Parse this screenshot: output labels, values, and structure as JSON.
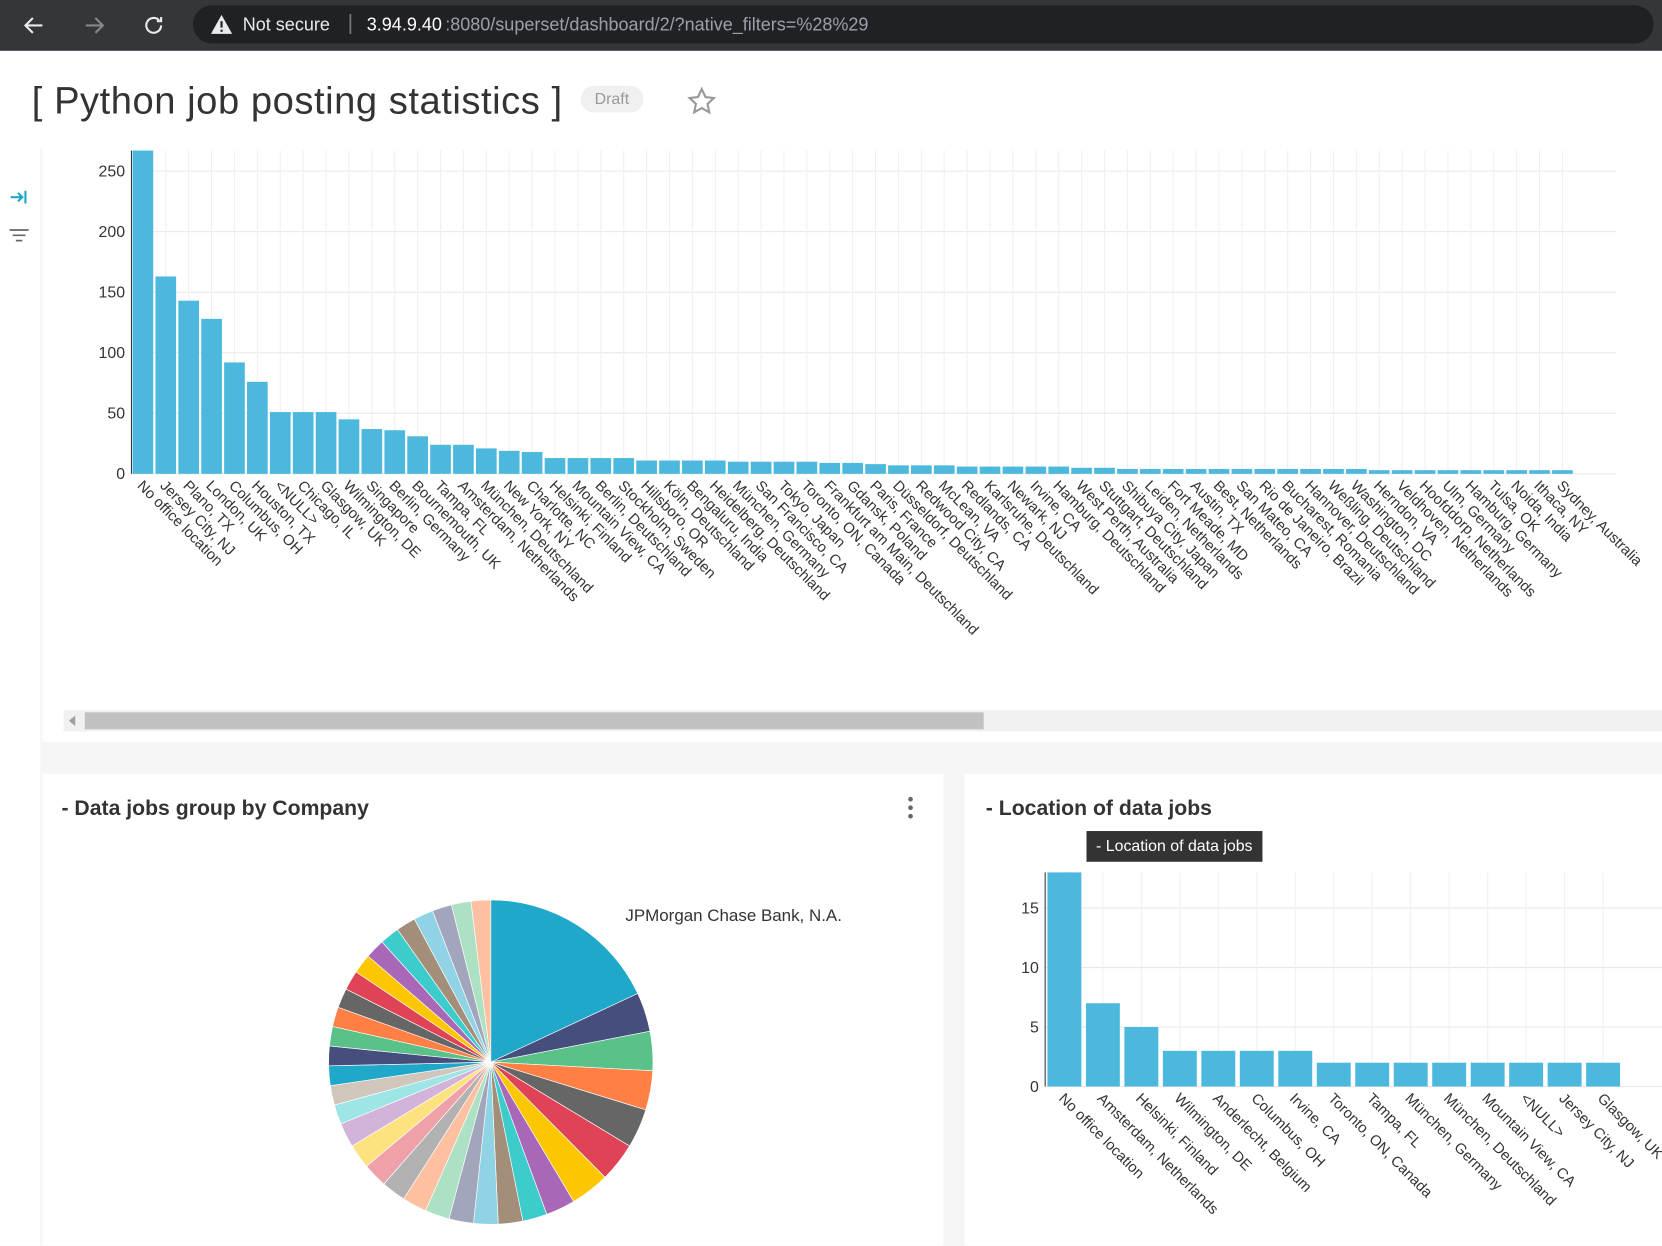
{
  "browser": {
    "security": "Not secure",
    "url_host": "3.94.9.40",
    "url_rest": ":8080/superset/dashboard/2/?native_filters=%28%29"
  },
  "header": {
    "title": "[ Python job posting statistics ]",
    "badge": "Draft"
  },
  "panels": [
    {
      "title": "- Data jobs group by Company"
    },
    {
      "title": "- Location of data jobs",
      "tooltip": "- Location of data jobs"
    }
  ],
  "chart_data": [
    {
      "type": "bar",
      "color": "#4db8dd",
      "grid": true,
      "categories": [
        "No office location",
        "Jersey City, NJ",
        "Plano, TX",
        "London, UK",
        "Columbus, OH",
        "Houston, TX",
        "<NULL>",
        "Chicago, IL",
        "Glasgow, UK",
        "Wilmington, DE",
        "Singapore",
        "Berlin, Germany",
        "Bournemouth, UK",
        "Tampa, FL",
        "Amsterdam, Netherlands",
        "München, Deutschland",
        "New York, NY",
        "Charlotte, NC",
        "Helsinki, Finland",
        "Mountain View, CA",
        "Berlin, Deutschland",
        "Stockholm, Sweden",
        "Hillsboro, OR",
        "Köln, Deutschland",
        "Bengaluru, India",
        "Heidelberg, Deutschland",
        "München, Germany",
        "San Francisco, CA",
        "Tokyo, Japan",
        "Toronto, ON, Canada",
        "Frankfurt am Main, Deutschland",
        "Gdansk, Poland",
        "Paris, France",
        "Düsseldorf, Deutschland",
        "Redwood City, CA",
        "McLean, VA",
        "Redlands, CA",
        "Karlsruhe, Deutschland",
        "Newark, NJ",
        "Irvine, CA",
        "Hamburg, Deutschland",
        "West Perth, Australia",
        "Stuttgart, Deutschland",
        "Shibuya City, Japan",
        "Leiden, Netherlands",
        "Fort Meade, MD",
        "Austin, TX",
        "Best, Netherlands",
        "San Mateo, CA",
        "Rio de Janeiro, Brazil",
        "Bucharest, Romania",
        "Hannover, Deutschland",
        "Weßling, Deutschland",
        "Washington, DC",
        "Herndon, VA",
        "Veldhoven, Netherlands",
        "Hoofddorp, Netherlands",
        "Ulm, Germany",
        "Hamburg, Germany",
        "Tulsa, OK",
        "Noida, India",
        "Ithaca, NY",
        "Sydney, Australia"
      ],
      "values": [
        267,
        163,
        143,
        128,
        92,
        76,
        51,
        51,
        51,
        45,
        37,
        36,
        31,
        24,
        24,
        21,
        19,
        18,
        13,
        13,
        13,
        13,
        11,
        11,
        11,
        11,
        10,
        10,
        10,
        10,
        9,
        9,
        8,
        7,
        7,
        7,
        6,
        6,
        6,
        6,
        6,
        5,
        5,
        4,
        4,
        4,
        4,
        4,
        4,
        4,
        4,
        4,
        4,
        4,
        3,
        3,
        3,
        3,
        3,
        3,
        3,
        3,
        3
      ],
      "ylim": [
        0,
        267
      ],
      "yticks": [
        0,
        50,
        100,
        150,
        200,
        250
      ]
    },
    {
      "type": "pie",
      "categories": [
        "JPMorgan Chase Bank, N.A.",
        null,
        null,
        null,
        null,
        null,
        null,
        null,
        null,
        null,
        null,
        null,
        null,
        null,
        null,
        null,
        null,
        null,
        null,
        null,
        null,
        null,
        null,
        null,
        null,
        null,
        null,
        null,
        null,
        null,
        null,
        null,
        null,
        null
      ],
      "values": [
        37,
        8,
        8,
        8,
        8,
        8,
        8,
        6,
        5,
        5,
        5,
        5,
        5,
        5,
        5,
        5,
        5,
        5,
        4,
        4,
        4,
        4,
        4,
        4,
        4,
        4,
        4,
        4,
        4,
        4,
        4,
        4,
        4,
        4
      ],
      "colors": [
        "#1fa8c9",
        "#454e7c",
        "#5ac189",
        "#ff7f44",
        "#666666",
        "#e04355",
        "#fcc700",
        "#a868b7",
        "#3ccccb",
        "#a38f79",
        "#8fd3e4",
        "#a1a6bd",
        "#ace1c4",
        "#fec0a1",
        "#b2b2b2",
        "#efa1aa",
        "#fde380",
        "#d3b3da",
        "#9ee5e5",
        "#d1c6bc",
        "#1fa8c9",
        "#454e7c",
        "#5ac189",
        "#ff7f44",
        "#666666",
        "#e04355",
        "#fcc700",
        "#a868b7",
        "#3ccccb",
        "#a38f79",
        "#8fd3e4",
        "#a1a6bd",
        "#ace1c4",
        "#fec0a1"
      ]
    },
    {
      "type": "bar",
      "color": "#4db8dd",
      "grid": true,
      "categories": [
        "No office location",
        "Amsterdam, Netherlands",
        "Helsinki, Finland",
        "Wilmington, DE",
        "Anderlecht, Belgium",
        "Columbus, OH",
        "Irvine, CA",
        "Toronto, ON, Canada",
        "Tampa, FL",
        "München, Germany",
        "München, Deutschland",
        "Mountain View, CA",
        "<NULL>",
        "Jersey City, NJ",
        "Glasgow, UK"
      ],
      "values": [
        18,
        7,
        5,
        3,
        3,
        3,
        3,
        2,
        2,
        2,
        2,
        2,
        2,
        2,
        2
      ],
      "ylim": [
        0,
        18
      ],
      "yticks": [
        0,
        5,
        10,
        15
      ]
    }
  ]
}
